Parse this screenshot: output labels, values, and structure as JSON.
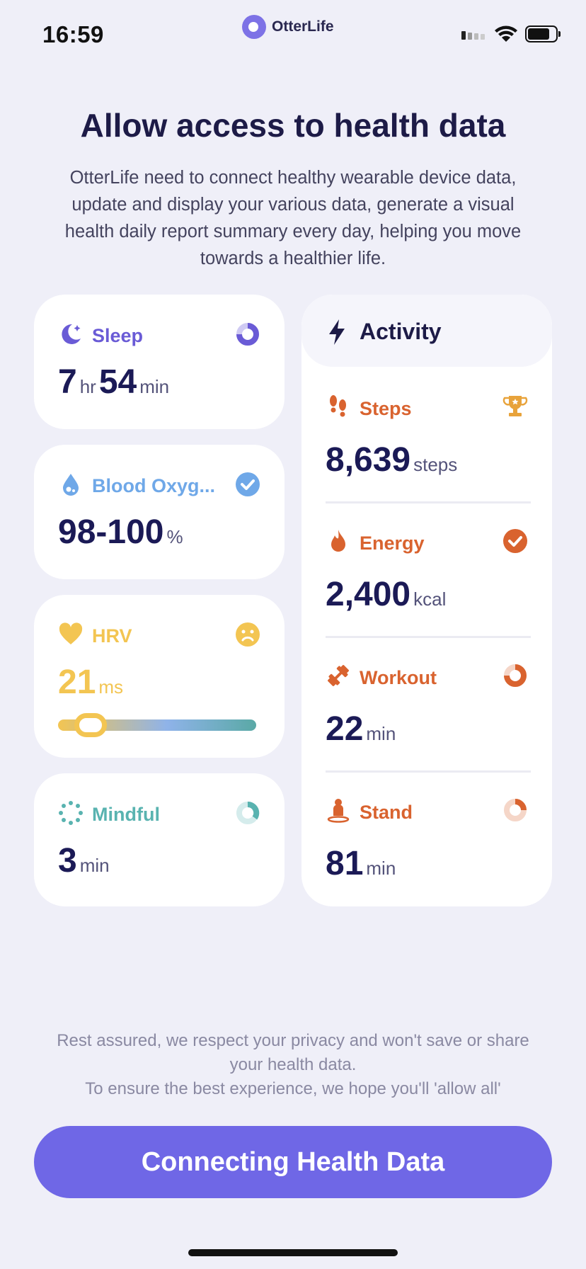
{
  "status_bar": {
    "time": "16:59",
    "app_name": "OtterLife"
  },
  "heading": "Allow access to health data",
  "description": "OtterLife need to connect healthy wearable device data, update and display your various data, generate a visual health daily report summary every day, helping you move towards a healthier life.",
  "sleep": {
    "title": "Sleep",
    "hours": "7",
    "hours_unit": "hr",
    "minutes": "54",
    "minutes_unit": "min",
    "icon": "moon-icon",
    "color": "#6a5bd6"
  },
  "blood_oxygen": {
    "title": "Blood Oxyg...",
    "value": "98-100",
    "unit": "%",
    "icon": "droplet-icon",
    "color": "#6fa8e8"
  },
  "hrv": {
    "title": "HRV",
    "value": "21",
    "unit": "ms",
    "icon": "heart-icon",
    "color": "#f3c552",
    "slider_level": 0.12
  },
  "mindful": {
    "title": "Mindful",
    "value": "3",
    "unit": "min",
    "icon": "mindful-icon",
    "color": "#59b3b0"
  },
  "activity": {
    "title": "Activity",
    "steps": {
      "title": "Steps",
      "value": "8,639",
      "unit": "steps"
    },
    "energy": {
      "title": "Energy",
      "value": "2,400",
      "unit": "kcal"
    },
    "workout": {
      "title": "Workout",
      "value": "22",
      "unit": "min"
    },
    "stand": {
      "title": "Stand",
      "value": "81",
      "unit": "min"
    },
    "color": "#d9632f"
  },
  "privacy_note_1": "Rest assured, we respect your privacy and won't save or share your health data.",
  "privacy_note_2": "To ensure the best experience, we hope you'll 'allow  all'",
  "cta_label": "Connecting Health Data"
}
